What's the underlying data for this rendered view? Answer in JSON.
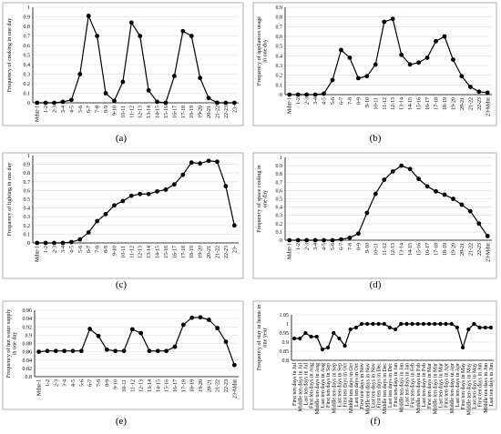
{
  "colors": {
    "series": "#000000",
    "grid": "#d9d9d9",
    "frame": "#9a9a9a"
  },
  "chart_data": [
    {
      "type": "line",
      "caption": "(a)",
      "ylabel": "Frequency of cooking in one day",
      "categories": [
        "Mdnt-1",
        "1-2",
        "2-3",
        "3-4",
        "4-5",
        "5-6",
        "6-7",
        "7-8",
        "8-9",
        "9-10",
        "10-11",
        "11-12",
        "12-13",
        "13-14",
        "14-15",
        "15-16",
        "16-17",
        "17-18",
        "18-19",
        "19-20",
        "20-21",
        "21-22",
        "22-23",
        "23-"
      ],
      "values": [
        0,
        0,
        0,
        0.01,
        0.03,
        0.3,
        0.91,
        0.7,
        0.1,
        0.02,
        0.22,
        0.84,
        0.7,
        0.13,
        0.01,
        0,
        0.28,
        0.75,
        0.7,
        0.26,
        0.05,
        0,
        0,
        0
      ],
      "ylim": [
        0,
        1
      ],
      "yticks": [
        0,
        0.1,
        0.2,
        0.3,
        0.4,
        0.5,
        0.6,
        0.7,
        0.8,
        0.9,
        1
      ],
      "grid": "horizontal"
    },
    {
      "type": "line",
      "caption": "(b)",
      "ylabel": "Frequency of appliances usage in one day",
      "categories": [
        "Mdnt-1",
        "1-2",
        "2-3",
        "3-4",
        "4-5",
        "5-6",
        "6-7",
        "7-8",
        "8-9",
        "9-10",
        "10-11",
        "11-12",
        "12-13",
        "13-14",
        "14-15",
        "15-16",
        "16-17",
        "17-18",
        "18-19",
        "19-20",
        "20-21",
        "21-22",
        "22-23",
        "23-Mdnt"
      ],
      "values": [
        0,
        0,
        0,
        0,
        0.01,
        0.15,
        0.46,
        0.38,
        0.17,
        0.19,
        0.31,
        0.75,
        0.78,
        0.41,
        0.31,
        0.33,
        0.38,
        0.55,
        0.6,
        0.36,
        0.19,
        0.08,
        0.03,
        0.02
      ],
      "ylim": [
        0,
        0.9
      ],
      "yticks": [
        0,
        0.1,
        0.2,
        0.3,
        0.4,
        0.5,
        0.6,
        0.7,
        0.8,
        0.9
      ],
      "grid": "horizontal"
    },
    {
      "type": "line",
      "caption": "(c)",
      "ylabel": "Frequency of lighting in one day",
      "categories": [
        "Mdnt-1",
        "1-2",
        "2-3",
        "3-4",
        "4-5",
        "5-6",
        "6-7",
        "7-8",
        "8-9",
        "9-10",
        "10-11",
        "11-12",
        "12-13",
        "13-14",
        "14-15",
        "15-16",
        "16-17",
        "17-18",
        "18-19",
        "19-20",
        "20-21",
        "21-22",
        "22-23",
        "23-"
      ],
      "values": [
        0,
        0,
        0,
        0,
        0.01,
        0.04,
        0.12,
        0.25,
        0.33,
        0.43,
        0.48,
        0.54,
        0.56,
        0.56,
        0.59,
        0.61,
        0.67,
        0.78,
        0.92,
        0.91,
        0.94,
        0.93,
        0.65,
        0.2
      ],
      "ylim": [
        0,
        1
      ],
      "yticks": [
        0,
        0.1,
        0.2,
        0.3,
        0.4,
        0.5,
        0.6,
        0.7,
        0.8,
        0.9,
        1
      ],
      "grid": "horizontal"
    },
    {
      "type": "line",
      "caption": "(d)",
      "ylabel": "Frequency of space cooling in one day",
      "categories": [
        "Mdnt-1",
        "1-2",
        "2-3",
        "3-4",
        "4-5",
        "5-6",
        "6-7",
        "7-8",
        "8-9",
        "9-10",
        "10-11",
        "11-12",
        "12-13",
        "13-14",
        "14-15",
        "15-16",
        "16-17",
        "17-18",
        "18-19",
        "19-20",
        "20-21",
        "21-22",
        "22-23",
        "23-Mdnt"
      ],
      "values": [
        0,
        0,
        0,
        0,
        0,
        0,
        0.01,
        0.03,
        0.08,
        0.33,
        0.56,
        0.73,
        0.83,
        0.9,
        0.86,
        0.74,
        0.65,
        0.59,
        0.55,
        0.5,
        0.43,
        0.35,
        0.2,
        0.05
      ],
      "ylim": [
        0,
        1
      ],
      "yticks": [
        0,
        0.1,
        0.2,
        0.3,
        0.4,
        0.5,
        0.6,
        0.7,
        0.8,
        0.9,
        1
      ],
      "grid": "horizontal"
    },
    {
      "type": "line",
      "caption": "(e)",
      "ylabel": "Frequency of hot water supply in one day",
      "categories": [
        "Mdnt-1",
        "1-2",
        "2-3",
        "3-4",
        "4-5",
        "5-6",
        "6-7",
        "7-8",
        "8-9",
        "9-10",
        "10-11",
        "11-12",
        "12-13",
        "13-14",
        "14-15",
        "15-16",
        "16-17",
        "17-18",
        "18-19",
        "19-20",
        "20-21",
        "21-22",
        "22-23",
        "23-Mdnt"
      ],
      "values": [
        0.86,
        0.862,
        0.862,
        0.862,
        0.862,
        0.862,
        0.915,
        0.898,
        0.865,
        0.862,
        0.862,
        0.914,
        0.905,
        0.862,
        0.862,
        0.862,
        0.872,
        0.925,
        0.942,
        0.943,
        0.937,
        0.917,
        0.884,
        0.828
      ],
      "ylim": [
        0.8,
        0.96
      ],
      "yticks": [
        0.8,
        0.82,
        0.84,
        0.86,
        0.88,
        0.9,
        0.92,
        0.94,
        0.96
      ],
      "grid": "horizontal"
    },
    {
      "type": "line",
      "caption": "(f)",
      "ylabel": "Frequency of stay in home in one year",
      "categories": [
        "First ten days in Jul",
        "Middle ten days in Jul",
        "Last ten days in Jul",
        "First ten days in Aug",
        "Middle ten days in Aug",
        "Last ten days in Aug",
        "First ten days in Sep",
        "Middle ten days in Sep",
        "Last ten days in Sep",
        "First ten days in Oct",
        "Middle ten days in Oct",
        "Last ten days in Oct",
        "First ten days in Nov",
        "Middle ten days in Nov",
        "Last ten days in Nov",
        "First ten days in Dec",
        "Middle ten days in Dec",
        "Last ten days in Dec",
        "First ten days in Jan",
        "Middle ten days in Jan",
        "Last ten days in Jan",
        "First ten days in Feb",
        "Middle ten days in Feb",
        "Last ten days in Feb",
        "First ten days in Mar",
        "Middle ten days in Mar",
        "Last ten days in Mar",
        "First ten days in Apr",
        "Middle ten days in Apr",
        "Last ten days in Apr",
        "First ten days in May",
        "Middle ten days in May",
        "Last ten days in May",
        "First ten days in Jun",
        "Middle ten days in Jun",
        "Last ten days in Jun"
      ],
      "values": [
        0.92,
        0.92,
        0.95,
        0.93,
        0.93,
        0.86,
        0.87,
        0.95,
        0.92,
        0.88,
        0.97,
        0.98,
        1,
        1,
        1,
        1,
        1,
        0.98,
        0.97,
        1,
        1,
        1,
        1,
        1,
        1,
        1,
        1,
        1,
        1,
        0.98,
        0.87,
        0.97,
        1,
        0.98,
        0.98,
        0.98
      ],
      "ylim": [
        0.8,
        1.05
      ],
      "yticks": [
        0.8,
        0.85,
        0.9,
        0.95,
        1,
        1.05
      ],
      "grid": "horizontal"
    }
  ]
}
